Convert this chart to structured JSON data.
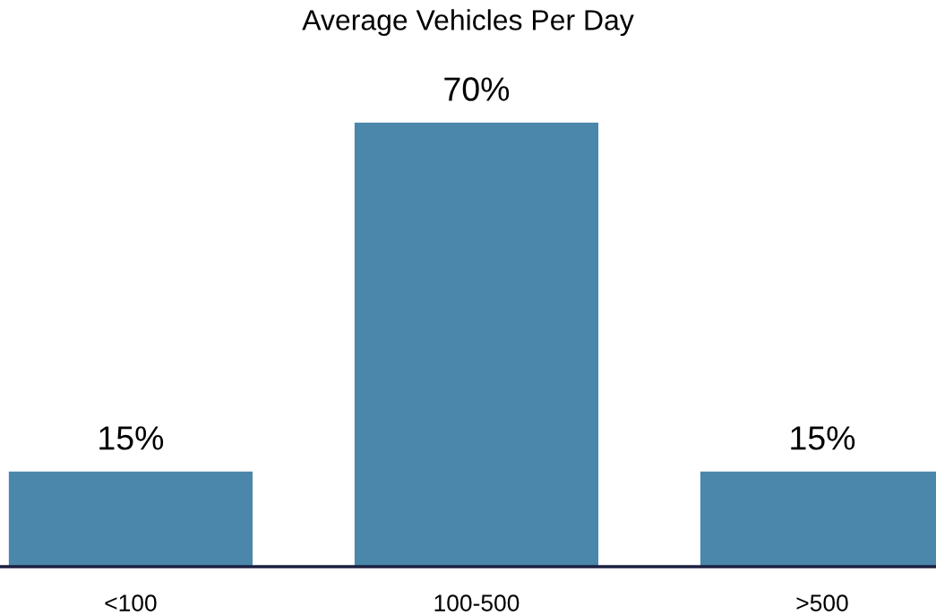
{
  "chart_data": {
    "type": "bar",
    "title": "Average Vehicles Per Day",
    "categories": [
      "<100",
      "100-500",
      ">500"
    ],
    "values": [
      15,
      70,
      15
    ],
    "color": "#4a87ab",
    "data_labels": true,
    "value_labels": [
      "15%",
      "70%",
      "15%"
    ],
    "grid": false,
    "legend": false
  }
}
